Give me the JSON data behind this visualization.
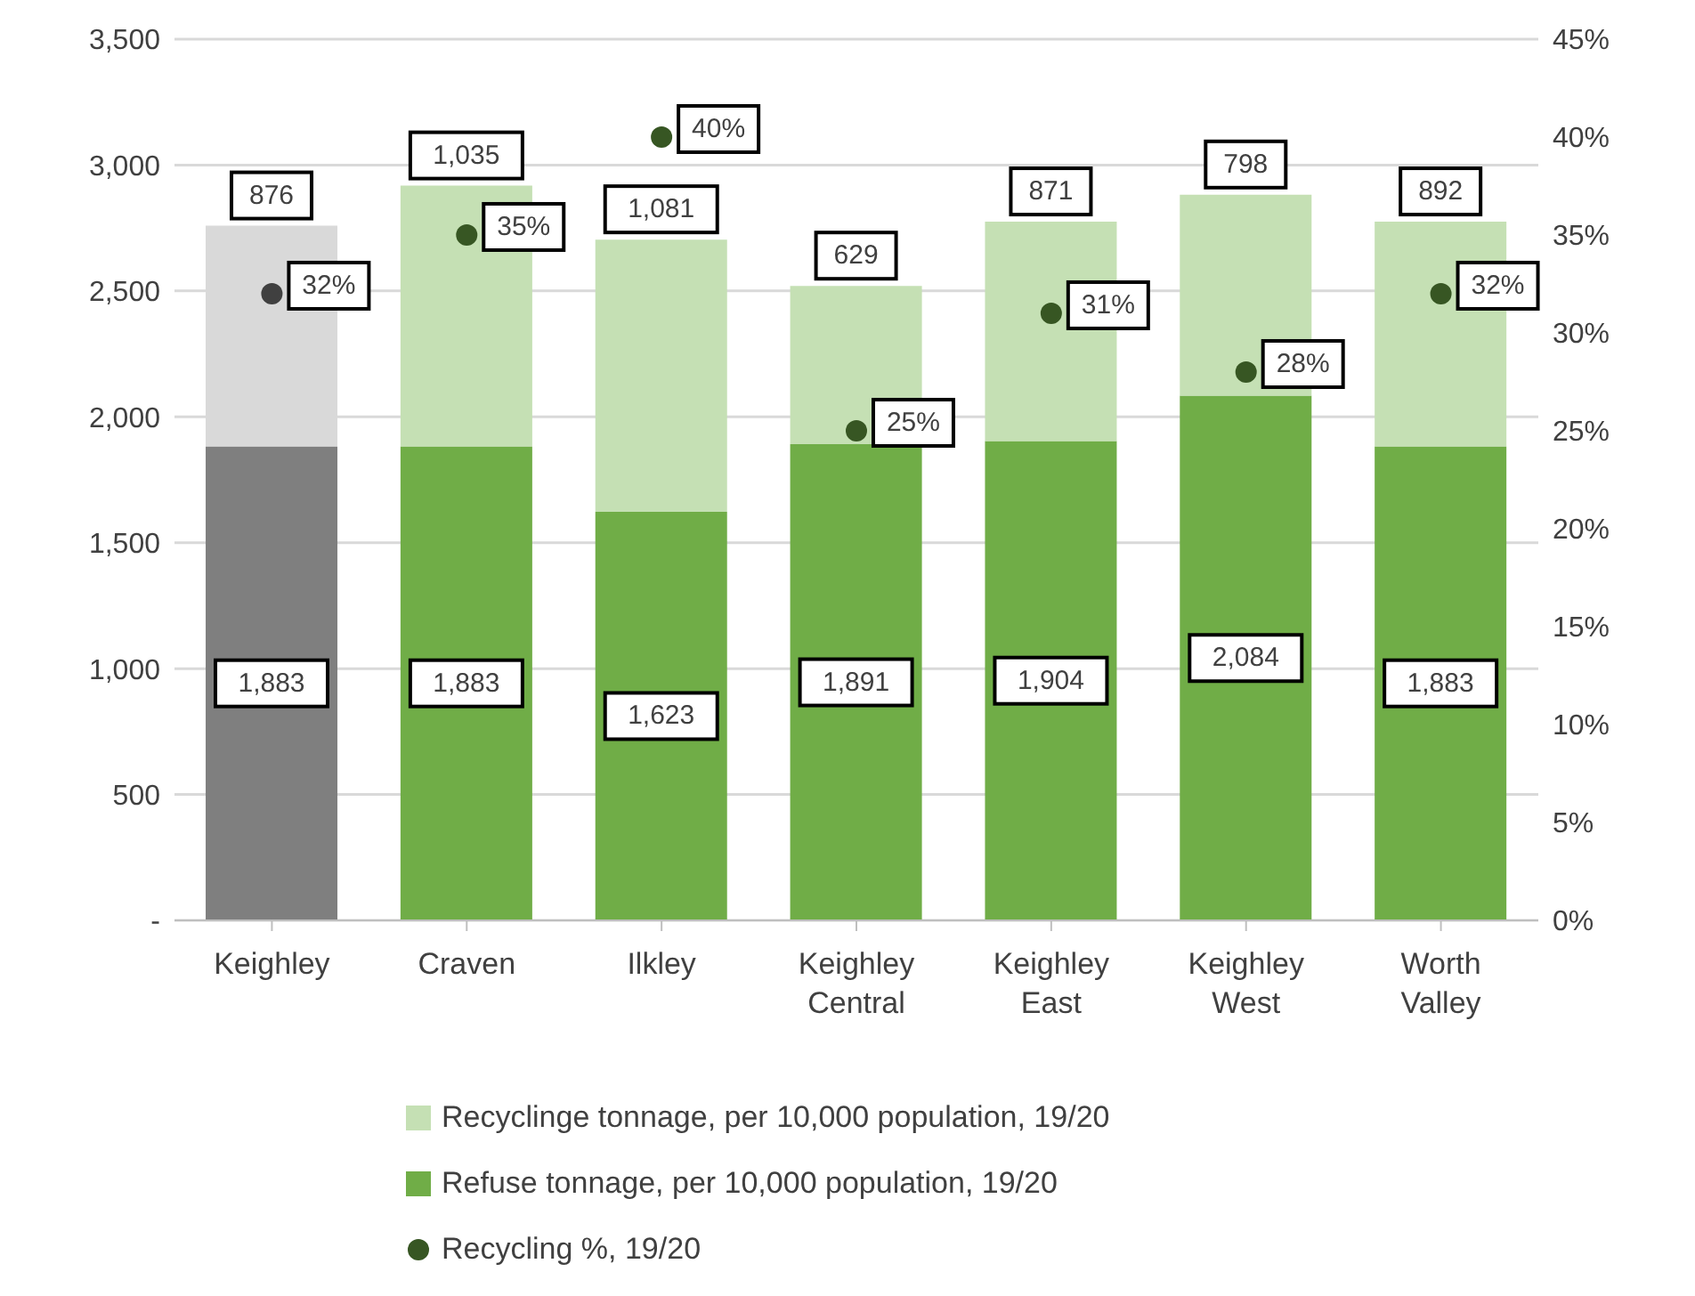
{
  "chart_data": {
    "type": "bar",
    "stacked": true,
    "categories": [
      "Keighley",
      "Craven",
      "Ilkley",
      "Keighley Central",
      "Keighley East",
      "Keighley West",
      "Worth Valley"
    ],
    "series": [
      {
        "name": "Refuse tonnage, per 10,000 population, 19/20",
        "color": "#70ad47",
        "colors": [
          "#7f7f7f",
          "#70ad47",
          "#70ad47",
          "#70ad47",
          "#70ad47",
          "#70ad47",
          "#70ad47"
        ],
        "values": [
          1883,
          1883,
          1623,
          1891,
          1904,
          2084,
          1883
        ],
        "value_labels": [
          "1,883",
          "1,883",
          "1,623",
          "1,891",
          "1,904",
          "2,084",
          "1,883"
        ]
      },
      {
        "name": "Recyclinge tonnage, per 10,000 population, 19/20",
        "color": "#c5e0b4",
        "colors": [
          "#d9d9d9",
          "#c5e0b4",
          "#c5e0b4",
          "#c5e0b4",
          "#c5e0b4",
          "#c5e0b4",
          "#c5e0b4"
        ],
        "values": [
          876,
          1035,
          1081,
          629,
          871,
          798,
          892
        ],
        "value_labels": [
          "876",
          "1,035",
          "1,081",
          "629",
          "871",
          "798",
          "892"
        ]
      },
      {
        "name": "Recycling %, 19/20",
        "type": "scatter",
        "axis": "y2",
        "marker": "circle",
        "color": "#375623",
        "colors": [
          "#404040",
          "#375623",
          "#375623",
          "#375623",
          "#375623",
          "#375623",
          "#375623"
        ],
        "values": [
          32,
          35,
          40,
          25,
          31,
          28,
          32
        ],
        "value_labels": [
          "32%",
          "35%",
          "40%",
          "25%",
          "31%",
          "28%",
          "32%"
        ]
      }
    ],
    "ylim": [
      0,
      3500
    ],
    "yticks": [
      {
        "value": 0,
        "label": "-"
      },
      {
        "value": 500,
        "label": "500"
      },
      {
        "value": 1000,
        "label": "1,000"
      },
      {
        "value": 1500,
        "label": "1,500"
      },
      {
        "value": 2000,
        "label": "2,000"
      },
      {
        "value": 2500,
        "label": "2,500"
      },
      {
        "value": 3000,
        "label": "3,000"
      },
      {
        "value": 3500,
        "label": "3,500"
      }
    ],
    "y2lim": [
      0,
      45
    ],
    "y2ticks": [
      {
        "value": 0,
        "label": "0%"
      },
      {
        "value": 5,
        "label": "5%"
      },
      {
        "value": 10,
        "label": "10%"
      },
      {
        "value": 15,
        "label": "15%"
      },
      {
        "value": 20,
        "label": "20%"
      },
      {
        "value": 25,
        "label": "25%"
      },
      {
        "value": 30,
        "label": "30%"
      },
      {
        "value": 35,
        "label": "35%"
      },
      {
        "value": 40,
        "label": "40%"
      },
      {
        "value": 45,
        "label": "45%"
      }
    ],
    "grid": "y",
    "legend": "bottom"
  }
}
